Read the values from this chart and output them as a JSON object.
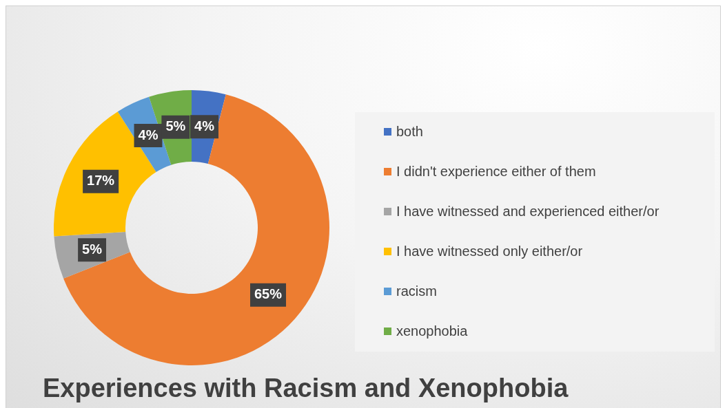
{
  "chart_data": {
    "type": "donut",
    "title": "Experiences with Racism and Xenophobia",
    "categories": [
      "both",
      "I didn't experience either of them",
      "I have witnessed and experienced either/or",
      "I have witnessed only either/or",
      "racism",
      "xenophobia"
    ],
    "values": [
      4,
      65,
      5,
      17,
      4,
      5
    ],
    "colors": [
      "#4472c4",
      "#ed7d31",
      "#a5a5a5",
      "#ffc000",
      "#5b9bd5",
      "#70ad47"
    ],
    "value_labels": [
      "4%",
      "65%",
      "5%",
      "17%",
      "4%",
      "5%"
    ],
    "legend": "right"
  }
}
